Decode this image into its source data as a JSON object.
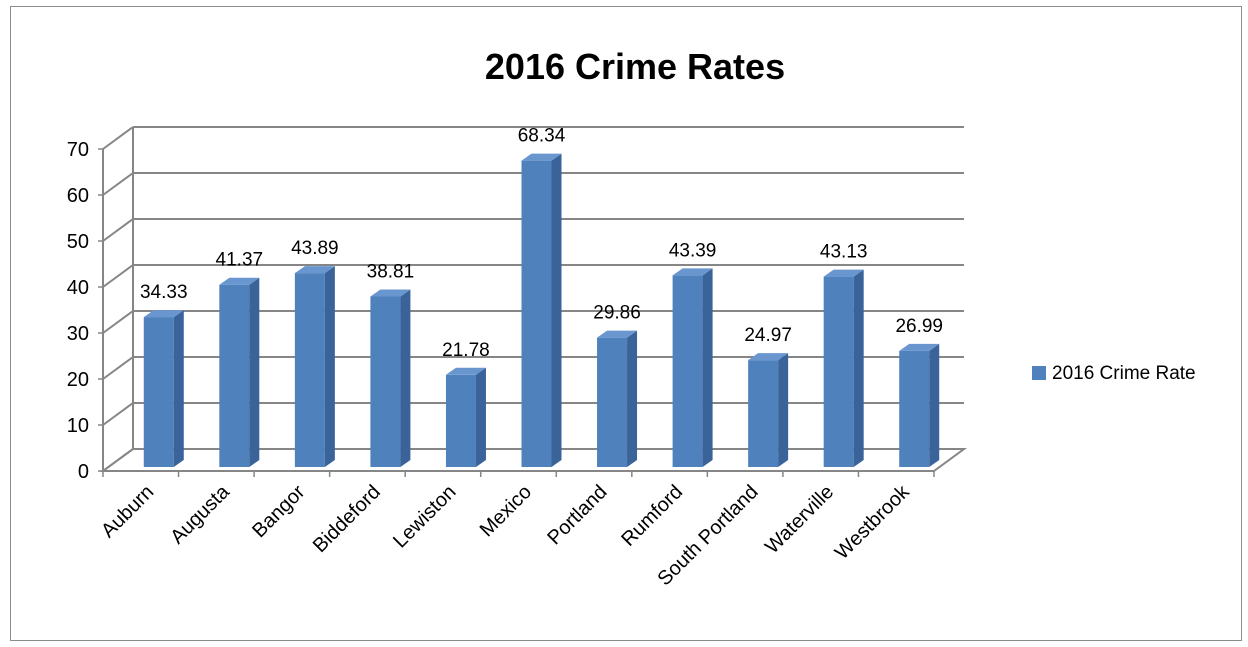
{
  "chart_data": {
    "type": "bar",
    "title": "2016 Crime Rates",
    "categories": [
      "Auburn",
      "Augusta",
      "Bangor",
      "Biddeford",
      "Lewiston",
      "Mexico",
      "Portland",
      "Rumford",
      "South Portland",
      "Waterville",
      "Westbrook"
    ],
    "series": [
      {
        "name": "2016 Crime Rate",
        "values": [
          34.33,
          41.37,
          43.89,
          38.81,
          21.78,
          68.34,
          29.86,
          43.39,
          24.97,
          43.13,
          26.99
        ],
        "color": "#4f81bd"
      }
    ],
    "data_labels": [
      "34.33",
      "41.37",
      "43.89",
      "38.81",
      "21.78",
      "68.34",
      "29.86",
      "43.39",
      "24.97",
      "43.13",
      "26.99"
    ],
    "y_ticks": [
      "0",
      "10",
      "20",
      "30",
      "40",
      "50",
      "60",
      "70"
    ],
    "ylim": [
      0,
      70
    ],
    "xlabel": "",
    "ylabel": "",
    "grid": true,
    "legend_position": "right",
    "style": "3d-column"
  }
}
